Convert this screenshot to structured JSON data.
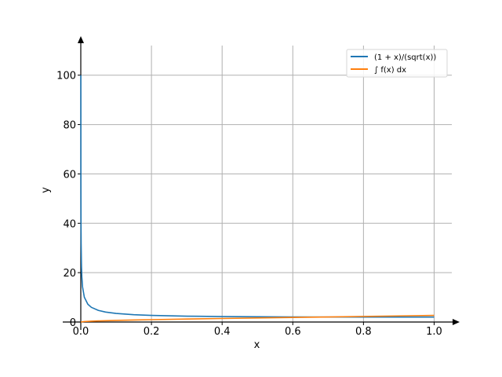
{
  "chart_data": {
    "type": "line",
    "xlabel": "x",
    "ylabel": "y",
    "xlim": [
      0,
      1.05
    ],
    "ylim": [
      0,
      112
    ],
    "xticks": [
      0.0,
      0.2,
      0.4,
      0.6,
      0.8,
      1.0
    ],
    "xtick_labels": [
      "0.0",
      "0.2",
      "0.4",
      "0.6",
      "0.8",
      "1.0"
    ],
    "yticks": [
      0,
      20,
      40,
      60,
      80,
      100
    ],
    "ytick_labels": [
      "0",
      "20",
      "40",
      "60",
      "80",
      "100"
    ],
    "grid": true,
    "legend_position": "top-right",
    "series": [
      {
        "name": "(1 + x)/(sqrt(x))",
        "color": "#1f77b4",
        "x": [
          0.0001,
          0.0003,
          0.0006,
          0.001,
          0.002,
          0.003,
          0.005,
          0.01,
          0.02,
          0.03,
          0.05,
          0.07,
          0.1,
          0.15,
          0.2,
          0.3,
          0.4,
          0.5,
          0.6,
          0.7,
          0.8,
          0.9,
          1.0
        ],
        "y": [
          100.0,
          57.75,
          40.85,
          31.65,
          22.4,
          18.31,
          14.21,
          10.05,
          7.21,
          5.95,
          4.7,
          4.04,
          3.48,
          2.97,
          2.68,
          2.37,
          2.21,
          2.12,
          2.07,
          2.03,
          2.01,
          2.0,
          2.0
        ]
      },
      {
        "name": "∫ f(x) dx",
        "color": "#ff7f0e",
        "x": [
          0.0,
          0.01,
          0.03,
          0.05,
          0.1,
          0.15,
          0.2,
          0.3,
          0.4,
          0.5,
          0.6,
          0.7,
          0.8,
          0.9,
          1.0
        ],
        "y": [
          0.0,
          0.2,
          0.35,
          0.45,
          0.65,
          0.81,
          0.95,
          1.21,
          1.43,
          1.65,
          1.86,
          2.06,
          2.27,
          2.47,
          2.67
        ]
      }
    ]
  }
}
